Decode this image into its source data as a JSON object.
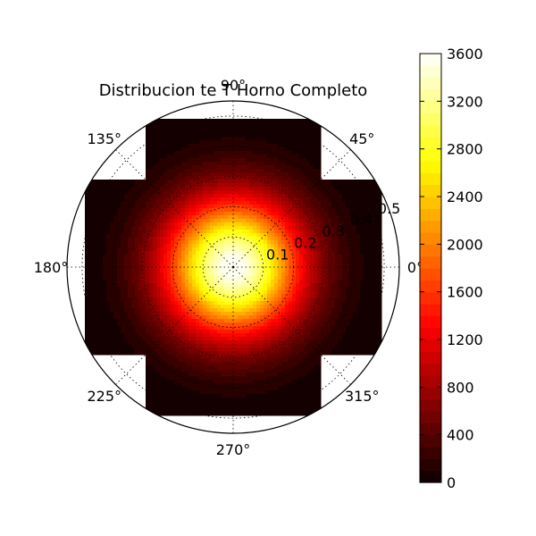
{
  "chart_data": {
    "type": "heatmap",
    "projection": "polar",
    "title": "Distribucion te T Horno Completo",
    "angle_ticks": [
      {
        "deg": 0,
        "label": "0°"
      },
      {
        "deg": 45,
        "label": "45°"
      },
      {
        "deg": 90,
        "label": "90°"
      },
      {
        "deg": 135,
        "label": "135°"
      },
      {
        "deg": 180,
        "label": "180°"
      },
      {
        "deg": 225,
        "label": "225°"
      },
      {
        "deg": 270,
        "label": "270°"
      },
      {
        "deg": 315,
        "label": "315°"
      }
    ],
    "radial_ticks": [
      {
        "r": 0.1,
        "label": "0.1"
      },
      {
        "r": 0.2,
        "label": "0.2"
      },
      {
        "r": 0.3,
        "label": "0.3"
      },
      {
        "r": 0.4,
        "label": "0.4"
      },
      {
        "r": 0.5,
        "label": "0.5"
      }
    ],
    "rlim": [
      0,
      0.55
    ],
    "grid": true,
    "colormap": "hot",
    "colorbar": {
      "vmin": 0,
      "vmax": 3600,
      "ticks": [
        {
          "value": 0,
          "label": "0"
        },
        {
          "value": 400,
          "label": "400"
        },
        {
          "value": 800,
          "label": "800"
        },
        {
          "value": 1200,
          "label": "1200"
        },
        {
          "value": 1600,
          "label": "1600"
        },
        {
          "value": 2000,
          "label": "2000"
        },
        {
          "value": 2400,
          "label": "2400"
        },
        {
          "value": 2800,
          "label": "2800"
        },
        {
          "value": 3200,
          "label": "3200"
        },
        {
          "value": 3600,
          "label": "3600"
        }
      ],
      "levels": 36
    },
    "field": {
      "peak_value": 3600,
      "peak_position": [
        0,
        0
      ],
      "half_width_x": 0.49,
      "half_width_y": 0.49,
      "corner_cut": 0.195,
      "value_at_edge": 0,
      "falloff_sigma": 0.16
    }
  },
  "colors": {
    "background": "#ffffff",
    "axis": "#000000",
    "grid": "#000000"
  }
}
